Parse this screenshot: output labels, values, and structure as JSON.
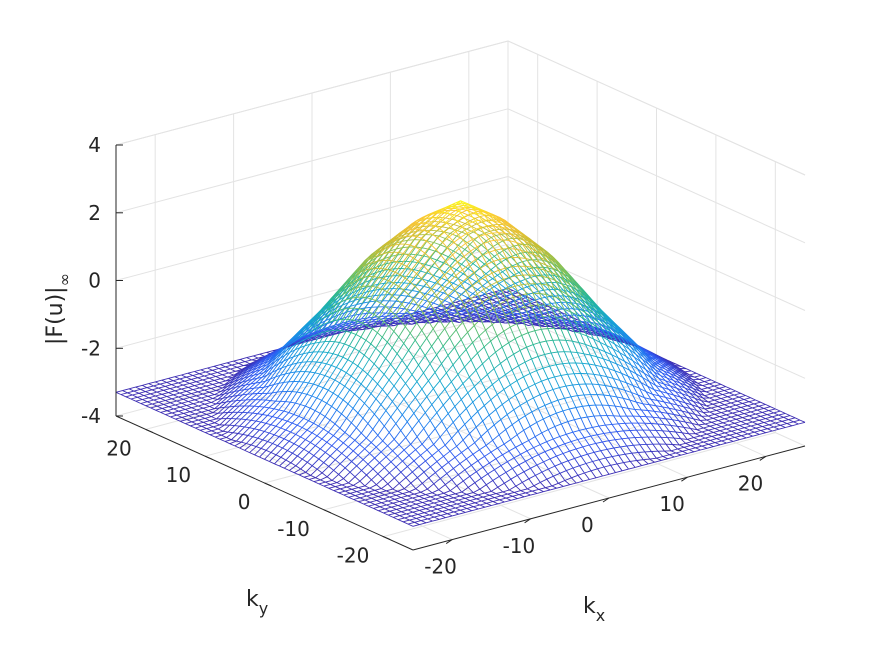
{
  "chart_data": {
    "type": "surface",
    "title": "",
    "xlabel": "k",
    "xlabel_sub": "x",
    "ylabel": "k",
    "ylabel_sub": "y",
    "zlabel": "|F(u)|",
    "zlabel_sub": "∞",
    "xlim": [
      -25,
      25
    ],
    "ylim": [
      -25,
      25
    ],
    "zlim": [
      -4,
      4
    ],
    "x_ticks": [
      -20,
      -10,
      0,
      10,
      20
    ],
    "y_ticks": [
      -20,
      -10,
      0,
      10,
      20
    ],
    "z_ticks": [
      -4,
      -2,
      0,
      2,
      4
    ],
    "x_tick_labels": [
      "-20",
      "-10",
      "0",
      "10",
      "20"
    ],
    "y_tick_labels": [
      "-20",
      "-10",
      "0",
      "10",
      "20"
    ],
    "z_tick_labels": [
      "-4",
      "-2",
      "0",
      "2",
      "4"
    ],
    "surface_samples": {
      "description_axis": "x",
      "x": [
        -25,
        -20,
        -15,
        -10,
        -5,
        0,
        5,
        10,
        15,
        20,
        25
      ],
      "y_at_zero_x_profile": [
        -3.3,
        -2.4,
        -0.9,
        0.8,
        2.0,
        2.8,
        2.0,
        0.8,
        -0.9,
        -2.4,
        -3.3
      ],
      "peak": {
        "x": 0,
        "y": 0,
        "z": 2.8
      },
      "corner_value": -3.4
    },
    "colormap": [
      "#3e26a8",
      "#2e59f2",
      "#1c86ed",
      "#16a8cf",
      "#2ab88f",
      "#7dc25b",
      "#cbbd32",
      "#fbc538",
      "#f9fb15"
    ],
    "grid": true
  }
}
